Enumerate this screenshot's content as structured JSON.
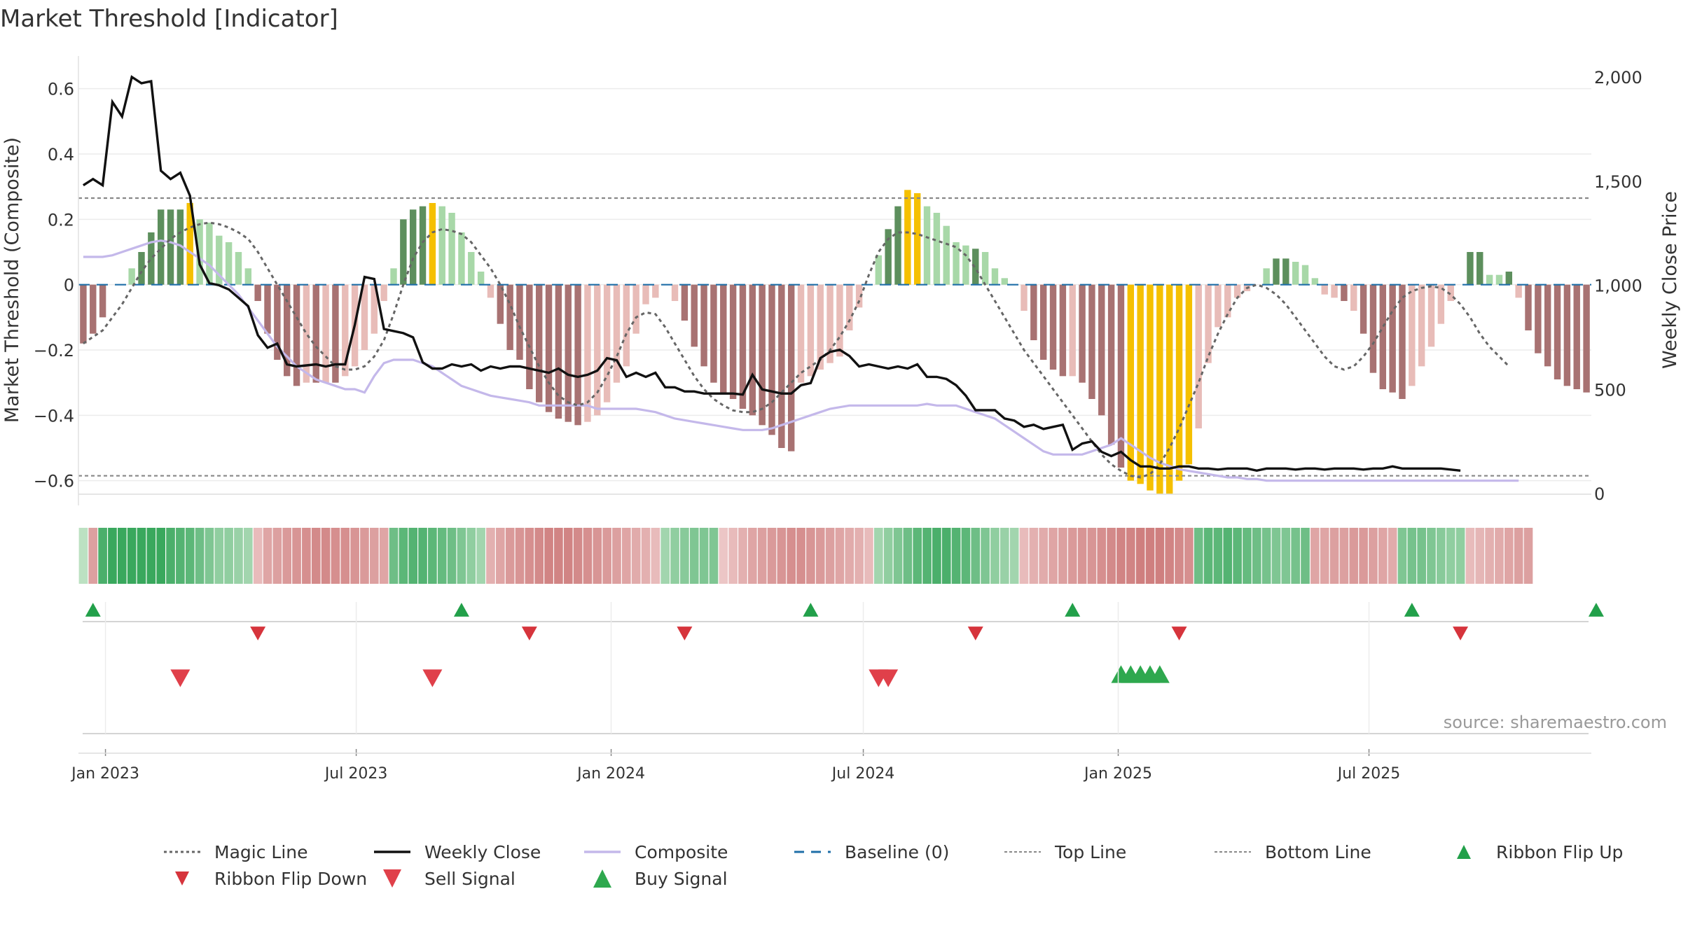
{
  "title": "Market Threshold [Indicator]",
  "source": "source: sharemaestro.com",
  "colors": {
    "strong_pos": "#5d8f5d",
    "light_pos": "#a8d8a8",
    "strong_neg": "#a87272",
    "light_neg": "#e8bcb8",
    "peak": "#f5c000",
    "magic": "#666666",
    "close": "#111111",
    "composite": "#c4b8ea",
    "baseline": "#1f6fa8",
    "threshold": "#888888",
    "flip_up": "#22a04a",
    "flip_down": "#d6343c",
    "buy": "#2ea84e",
    "sell": "#e0404a"
  },
  "chart_data": {
    "type": "bar",
    "title": "Market Threshold [Indicator]",
    "ylabel_left": "Market Threshold (Composite)",
    "ylabel_right": "Weekly Close Price",
    "ylim_left": [
      -0.65,
      0.7
    ],
    "yticks_left": [
      0.6,
      0.4,
      0.2,
      0,
      -0.2,
      -0.4,
      -0.6
    ],
    "ytick_labels_left": [
      "0.6",
      "0.4",
      "0.2",
      "0",
      "−0.2",
      "−0.4",
      "−0.6"
    ],
    "ylim_right": [
      0,
      2000
    ],
    "yticks_right": [
      0,
      500,
      1000,
      1500,
      2000
    ],
    "ytick_labels_right": [
      "0",
      "500",
      "1,000",
      "1,500",
      "2,000"
    ],
    "x_start": "2022-12-16",
    "x_step_days": 7,
    "xticks": [
      "2023-01-01",
      "2023-07-01",
      "2024-01-01",
      "2024-07-01",
      "2025-01-01",
      "2025-07-01"
    ],
    "xtick_labels": [
      "Jan 2023",
      "Jul 2023",
      "Jan 2024",
      "Jul 2024",
      "Jan 2025",
      "Jul 2025"
    ],
    "top_line": 0.265,
    "bottom_line": -0.585,
    "baseline": 0,
    "bar_values": [
      -0.18,
      -0.15,
      -0.1,
      0,
      0,
      0.05,
      0.1,
      0.16,
      0.23,
      0.23,
      0.23,
      0.25,
      0.2,
      0.19,
      0.15,
      0.13,
      0.1,
      0.05,
      -0.05,
      -0.15,
      -0.23,
      -0.28,
      -0.31,
      -0.3,
      -0.3,
      -0.3,
      -0.3,
      -0.28,
      -0.25,
      -0.2,
      -0.15,
      -0.05,
      0.05,
      0.2,
      0.23,
      0.24,
      0.25,
      0.24,
      0.22,
      0.16,
      0.1,
      0.04,
      -0.04,
      -0.12,
      -0.2,
      -0.23,
      -0.32,
      -0.36,
      -0.39,
      -0.41,
      -0.42,
      -0.43,
      -0.42,
      -0.4,
      -0.36,
      -0.3,
      -0.25,
      -0.15,
      -0.06,
      -0.04,
      0,
      -0.05,
      -0.11,
      -0.19,
      -0.25,
      -0.3,
      -0.33,
      -0.35,
      -0.38,
      -0.4,
      -0.43,
      -0.46,
      -0.5,
      -0.51,
      -0.3,
      -0.28,
      -0.26,
      -0.24,
      -0.22,
      -0.14,
      -0.07,
      0,
      0.09,
      0.17,
      0.24,
      0.29,
      0.28,
      0.24,
      0.22,
      0.18,
      0.13,
      0.12,
      0.11,
      0.1,
      0.05,
      0.02,
      0,
      -0.08,
      -0.17,
      -0.23,
      -0.26,
      -0.28,
      -0.28,
      -0.3,
      -0.35,
      -0.4,
      -0.49,
      -0.56,
      -0.6,
      -0.61,
      -0.63,
      -0.64,
      -0.64,
      -0.6,
      -0.55,
      -0.44,
      -0.24,
      -0.13,
      -0.1,
      -0.04,
      -0.02,
      0,
      0.05,
      0.08,
      0.08,
      0.07,
      0.06,
      0.02,
      -0.03,
      -0.04,
      -0.05,
      -0.08,
      -0.15,
      -0.27,
      -0.32,
      -0.33,
      -0.35,
      -0.31,
      -0.25,
      -0.19,
      -0.12,
      -0.05,
      0,
      0.1,
      0.1,
      0.03,
      0.03,
      0.04,
      -0.04,
      -0.14,
      -0.21,
      -0.25,
      -0.29,
      -0.31,
      -0.32,
      -0.33
    ],
    "bar_categories": [
      "strong_neg",
      "strong_neg",
      "strong_neg",
      "none",
      "none",
      "light_pos",
      "strong_pos",
      "strong_pos",
      "strong_pos",
      "strong_pos",
      "strong_pos",
      "peak",
      "light_pos",
      "light_pos",
      "light_pos",
      "light_pos",
      "light_pos",
      "light_pos",
      "strong_neg",
      "strong_neg",
      "strong_neg",
      "strong_neg",
      "strong_neg",
      "light_neg",
      "strong_neg",
      "light_neg",
      "strong_neg",
      "light_neg",
      "light_neg",
      "light_neg",
      "light_neg",
      "light_neg",
      "light_pos",
      "strong_pos",
      "strong_pos",
      "strong_pos",
      "peak",
      "light_pos",
      "light_pos",
      "light_pos",
      "light_pos",
      "light_pos",
      "light_neg",
      "strong_neg",
      "strong_neg",
      "strong_neg",
      "strong_neg",
      "strong_neg",
      "strong_neg",
      "strong_neg",
      "strong_neg",
      "strong_neg",
      "light_neg",
      "light_neg",
      "light_neg",
      "light_neg",
      "light_neg",
      "light_neg",
      "light_neg",
      "light_neg",
      "none",
      "light_neg",
      "strong_neg",
      "strong_neg",
      "strong_neg",
      "strong_neg",
      "strong_neg",
      "strong_neg",
      "strong_neg",
      "strong_neg",
      "strong_neg",
      "strong_neg",
      "strong_neg",
      "strong_neg",
      "light_neg",
      "light_neg",
      "light_neg",
      "light_neg",
      "light_neg",
      "light_neg",
      "light_neg",
      "none",
      "light_pos",
      "strong_pos",
      "strong_pos",
      "peak",
      "peak",
      "light_pos",
      "light_pos",
      "light_pos",
      "light_pos",
      "light_pos",
      "strong_pos",
      "light_pos",
      "light_pos",
      "light_pos",
      "none",
      "light_neg",
      "strong_neg",
      "strong_neg",
      "strong_neg",
      "strong_neg",
      "light_neg",
      "strong_neg",
      "strong_neg",
      "strong_neg",
      "strong_neg",
      "strong_neg",
      "peak",
      "peak",
      "peak",
      "peak",
      "peak",
      "peak",
      "peak",
      "light_neg",
      "light_neg",
      "light_neg",
      "light_neg",
      "light_neg",
      "light_neg",
      "none",
      "light_pos",
      "strong_pos",
      "strong_pos",
      "light_pos",
      "light_pos",
      "light_pos",
      "light_neg",
      "light_neg",
      "strong_neg",
      "light_neg",
      "strong_neg",
      "strong_neg",
      "strong_neg",
      "strong_neg",
      "strong_neg",
      "light_neg",
      "light_neg",
      "light_neg",
      "light_neg",
      "light_neg",
      "none",
      "strong_pos",
      "strong_pos",
      "light_pos",
      "light_pos",
      "strong_pos",
      "light_neg",
      "strong_neg",
      "strong_neg",
      "strong_neg",
      "strong_neg",
      "strong_neg",
      "strong_neg",
      "strong_neg"
    ],
    "series": [
      {
        "name": "Magic Line",
        "values": [
          -0.18,
          -0.16,
          -0.14,
          -0.1,
          -0.06,
          -0.01,
          0.04,
          0.08,
          0.11,
          0.14,
          0.16,
          0.175,
          0.185,
          0.19,
          0.185,
          0.175,
          0.16,
          0.14,
          0.1,
          0.05,
          0.0,
          -0.05,
          -0.1,
          -0.15,
          -0.19,
          -0.22,
          -0.25,
          -0.26,
          -0.26,
          -0.25,
          -0.22,
          -0.17,
          -0.09,
          0.0,
          0.08,
          0.13,
          0.16,
          0.17,
          0.165,
          0.155,
          0.13,
          0.09,
          0.05,
          0.0,
          -0.06,
          -0.13,
          -0.19,
          -0.25,
          -0.3,
          -0.34,
          -0.36,
          -0.37,
          -0.36,
          -0.33,
          -0.28,
          -0.22,
          -0.15,
          -0.1,
          -0.085,
          -0.09,
          -0.13,
          -0.18,
          -0.23,
          -0.28,
          -0.32,
          -0.35,
          -0.37,
          -0.385,
          -0.39,
          -0.39,
          -0.38,
          -0.36,
          -0.33,
          -0.3,
          -0.27,
          -0.25,
          -0.23,
          -0.2,
          -0.16,
          -0.11,
          -0.05,
          0.03,
          0.1,
          0.14,
          0.16,
          0.16,
          0.155,
          0.145,
          0.135,
          0.125,
          0.115,
          0.09,
          0.05,
          0.0,
          -0.05,
          -0.1,
          -0.15,
          -0.2,
          -0.24,
          -0.28,
          -0.32,
          -0.36,
          -0.4,
          -0.44,
          -0.48,
          -0.52,
          -0.55,
          -0.57,
          -0.585,
          -0.59,
          -0.58,
          -0.55,
          -0.5,
          -0.44,
          -0.37,
          -0.3,
          -0.22,
          -0.15,
          -0.09,
          -0.04,
          -0.01,
          0.0,
          -0.01,
          -0.03,
          -0.06,
          -0.1,
          -0.14,
          -0.18,
          -0.22,
          -0.25,
          -0.26,
          -0.25,
          -0.22,
          -0.18,
          -0.13,
          -0.08,
          -0.04,
          -0.02,
          -0.01,
          -0.005,
          -0.01,
          -0.03,
          -0.06,
          -0.1,
          -0.15,
          -0.19,
          -0.22,
          -0.25
        ]
      },
      {
        "name": "Weekly Close",
        "values": [
          1480,
          1510,
          1480,
          1880,
          1810,
          2000,
          1970,
          1980,
          1550,
          1510,
          1540,
          1430,
          1100,
          1010,
          1000,
          980,
          940,
          900,
          760,
          700,
          720,
          620,
          610,
          615,
          620,
          610,
          620,
          620,
          810,
          1040,
          1030,
          790,
          780,
          770,
          750,
          630,
          600,
          600,
          620,
          610,
          620,
          590,
          610,
          600,
          610,
          610,
          600,
          590,
          580,
          600,
          570,
          560,
          570,
          590,
          650,
          640,
          560,
          580,
          560,
          580,
          510,
          510,
          490,
          490,
          480,
          480,
          480,
          480,
          475,
          570,
          500,
          490,
          480,
          480,
          520,
          530,
          650,
          680,
          690,
          660,
          610,
          620,
          610,
          600,
          610,
          600,
          620,
          560,
          560,
          550,
          520,
          470,
          400,
          400,
          400,
          360,
          350,
          320,
          330,
          310,
          320,
          330,
          210,
          240,
          250,
          200,
          180,
          200,
          160,
          130,
          130,
          120,
          120,
          130,
          130,
          120,
          120,
          115,
          120,
          120,
          120,
          110,
          120,
          120,
          120,
          115,
          120,
          120,
          115,
          120,
          120,
          120,
          115,
          120,
          120,
          130,
          120,
          120,
          120,
          120,
          120,
          115,
          110
        ]
      },
      {
        "name": "Composite",
        "values": [
          0.085,
          0.085,
          0.085,
          0.09,
          0.1,
          0.11,
          0.12,
          0.13,
          0.135,
          0.13,
          0.12,
          0.1,
          0.08,
          0.06,
          0.03,
          0.0,
          -0.03,
          -0.07,
          -0.11,
          -0.15,
          -0.19,
          -0.22,
          -0.25,
          -0.27,
          -0.29,
          -0.3,
          -0.31,
          -0.32,
          -0.32,
          -0.33,
          -0.28,
          -0.24,
          -0.23,
          -0.23,
          -0.23,
          -0.24,
          -0.25,
          -0.27,
          -0.29,
          -0.31,
          -0.32,
          -0.33,
          -0.34,
          -0.345,
          -0.35,
          -0.355,
          -0.36,
          -0.37,
          -0.37,
          -0.37,
          -0.37,
          -0.37,
          -0.37,
          -0.38,
          -0.38,
          -0.38,
          -0.38,
          -0.38,
          -0.385,
          -0.39,
          -0.4,
          -0.41,
          -0.415,
          -0.42,
          -0.425,
          -0.43,
          -0.435,
          -0.44,
          -0.445,
          -0.445,
          -0.445,
          -0.44,
          -0.43,
          -0.42,
          -0.41,
          -0.4,
          -0.39,
          -0.38,
          -0.375,
          -0.37,
          -0.37,
          -0.37,
          -0.37,
          -0.37,
          -0.37,
          -0.37,
          -0.37,
          -0.365,
          -0.37,
          -0.37,
          -0.37,
          -0.38,
          -0.39,
          -0.4,
          -0.41,
          -0.43,
          -0.45,
          -0.47,
          -0.49,
          -0.51,
          -0.52,
          -0.52,
          -0.52,
          -0.52,
          -0.51,
          -0.5,
          -0.49,
          -0.47,
          -0.49,
          -0.51,
          -0.53,
          -0.545,
          -0.555,
          -0.565,
          -0.57,
          -0.575,
          -0.58,
          -0.585,
          -0.59,
          -0.59,
          -0.595,
          -0.595,
          -0.6,
          -0.6,
          -0.6,
          -0.6,
          -0.6,
          -0.6,
          -0.6,
          -0.6,
          -0.6,
          -0.6,
          -0.6,
          -0.6,
          -0.6,
          -0.6,
          -0.6,
          -0.6,
          -0.6,
          -0.6,
          -0.6,
          -0.6,
          -0.6,
          -0.6,
          -0.6,
          -0.6,
          -0.6,
          -0.6,
          -0.6
        ]
      }
    ],
    "ribbon_levels": [
      0.15,
      -0.55,
      0.8,
      0.9,
      0.9,
      0.9,
      0.9,
      0.9,
      0.9,
      0.8,
      0.75,
      0.7,
      0.6,
      0.5,
      0.4,
      0.4,
      0.35,
      0.3,
      -0.3,
      -0.5,
      -0.55,
      -0.6,
      -0.65,
      -0.7,
      -0.75,
      -0.75,
      -0.7,
      -0.7,
      -0.65,
      -0.6,
      -0.55,
      -0.5,
      0.6,
      0.7,
      0.75,
      0.75,
      0.7,
      0.65,
      0.6,
      0.5,
      0.4,
      0.3,
      -0.4,
      -0.5,
      -0.6,
      -0.65,
      -0.7,
      -0.75,
      -0.8,
      -0.8,
      -0.8,
      -0.75,
      -0.7,
      -0.65,
      -0.6,
      -0.55,
      -0.5,
      -0.45,
      -0.4,
      -0.3,
      0.3,
      0.4,
      0.45,
      0.5,
      0.5,
      0.5,
      -0.2,
      -0.3,
      -0.4,
      -0.5,
      -0.55,
      -0.6,
      -0.65,
      -0.7,
      -0.7,
      -0.65,
      -0.6,
      -0.55,
      -0.5,
      -0.45,
      -0.4,
      -0.3,
      0.3,
      0.4,
      0.5,
      0.6,
      0.7,
      0.75,
      0.8,
      0.8,
      0.75,
      0.7,
      0.6,
      0.5,
      0.4,
      0.35,
      0.3,
      -0.3,
      -0.4,
      -0.45,
      -0.5,
      -0.55,
      -0.6,
      -0.65,
      -0.65,
      -0.7,
      -0.75,
      -0.8,
      -0.8,
      -0.85,
      -0.85,
      -0.85,
      -0.8,
      -0.75,
      -0.7,
      0.6,
      0.7,
      0.7,
      0.75,
      0.7,
      0.65,
      0.6,
      0.55,
      0.5,
      0.5,
      0.55,
      0.6,
      -0.5,
      -0.5,
      -0.55,
      -0.55,
      -0.6,
      -0.6,
      -0.55,
      -0.5,
      -0.45,
      0.5,
      0.55,
      0.55,
      0.5,
      0.45,
      0.4,
      0.4,
      -0.3,
      -0.35,
      -0.4,
      -0.45,
      -0.5,
      -0.55,
      -0.55
    ],
    "ribbon_flip_up_idx": [
      1,
      39,
      75,
      102,
      137,
      156
    ],
    "ribbon_flip_down_idx": [
      18,
      46,
      62,
      92,
      113,
      142
    ],
    "sell_signal_idx": [
      10,
      36,
      82,
      83
    ],
    "buy_signal_idx": [
      107,
      108,
      109,
      110,
      111
    ],
    "legend": [
      {
        "key": "magic",
        "label": "Magic Line"
      },
      {
        "key": "close",
        "label": "Weekly Close"
      },
      {
        "key": "composite",
        "label": "Composite"
      },
      {
        "key": "baseline",
        "label": "Baseline (0)"
      },
      {
        "key": "top",
        "label": "Top Line"
      },
      {
        "key": "bottom",
        "label": "Bottom Line"
      },
      {
        "key": "flip_up",
        "label": "Ribbon Flip Up"
      },
      {
        "key": "flip_down",
        "label": "Ribbon Flip Down"
      },
      {
        "key": "sell",
        "label": "Sell Signal"
      },
      {
        "key": "buy",
        "label": "Buy Signal"
      }
    ]
  }
}
